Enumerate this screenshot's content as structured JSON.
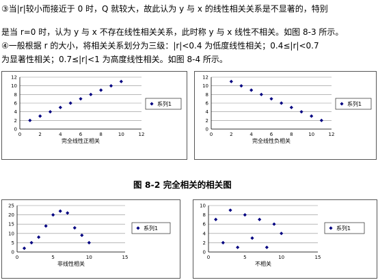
{
  "text": {
    "line1": "③当|r|较小而接近于 0 时，Q 就较大，故此认为 y 与 x 的线性相关关系是不显著的，特别",
    "line2": "是当 r=0 时，认为 y 与 x 不存在线性相关关系，此时称 y 与 x 线性不相关。如图 8-3 所示。",
    "line3": "④一般根据 r 的大小，将相关关系划分为三级：|r|<0.4 为低度线性相关；0.4≤|r|<0.7",
    "line4": "为显著性相关；0.7≤|r|<1 为高度线性相关。如图 8-4 所示。"
  },
  "figure_caption": "图 8-2   完全相关的相关图",
  "chart_data": [
    {
      "type": "scatter",
      "xlabel": "完全线性正相关",
      "legend": "系列1",
      "legend_position": "right",
      "xlim": [
        0,
        12
      ],
      "ylim": [
        0,
        12
      ],
      "xticks": [
        0,
        2,
        4,
        6,
        8,
        10,
        12
      ],
      "yticks": [
        0,
        2,
        4,
        6,
        8,
        10,
        12
      ],
      "x": [
        1,
        2,
        3,
        4,
        5,
        6,
        7,
        8,
        9,
        10
      ],
      "y": [
        2,
        3,
        4,
        5,
        6,
        7,
        8,
        9,
        10,
        11
      ],
      "color": "#000080"
    },
    {
      "type": "scatter",
      "xlabel": "完全线性负相关",
      "legend": "系列1",
      "legend_position": "right",
      "xlim": [
        0,
        12
      ],
      "ylim": [
        0,
        12
      ],
      "xticks": [
        0,
        2,
        4,
        6,
        8,
        10,
        12
      ],
      "yticks": [
        0,
        2,
        4,
        6,
        8,
        10,
        12
      ],
      "x": [
        2,
        3,
        4,
        5,
        6,
        7,
        8,
        9,
        10,
        11
      ],
      "y": [
        11,
        10,
        9,
        8,
        7,
        6,
        5,
        4,
        3,
        2
      ],
      "color": "#000080"
    },
    {
      "type": "scatter",
      "xlabel": "非线性相关",
      "legend": "系列1",
      "legend_position": "right",
      "xlim": [
        0,
        15
      ],
      "ylim": [
        0,
        25
      ],
      "xticks": [
        0,
        5,
        10,
        15
      ],
      "yticks": [
        0,
        5,
        10,
        15,
        20,
        25
      ],
      "x": [
        1,
        2,
        3,
        4,
        5,
        6,
        7,
        8,
        9,
        10
      ],
      "y": [
        2,
        5,
        8,
        14,
        20,
        22,
        21,
        13,
        9,
        5
      ],
      "color": "#000080"
    },
    {
      "type": "scatter",
      "xlabel": "不相关",
      "legend": "系列1",
      "legend_position": "right",
      "xlim": [
        0,
        15
      ],
      "ylim": [
        0,
        10
      ],
      "xticks": [
        0,
        5,
        10,
        15
      ],
      "yticks": [
        0,
        2,
        4,
        6,
        8,
        10
      ],
      "x": [
        1,
        2,
        3,
        4,
        5,
        6,
        7,
        8,
        9,
        10
      ],
      "y": [
        7,
        2,
        9,
        1,
        8,
        3,
        7,
        1,
        6,
        4
      ],
      "color": "#000080"
    }
  ]
}
